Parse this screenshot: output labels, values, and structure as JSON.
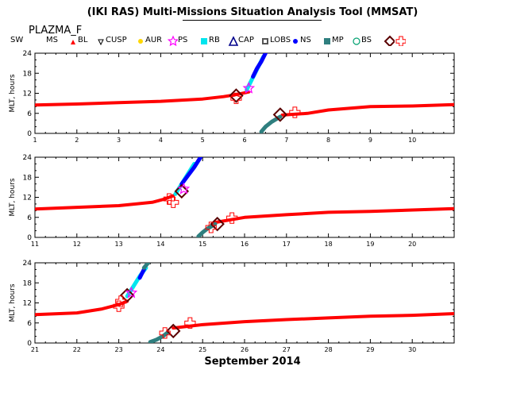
{
  "title": "(IKI RAS) Multi-Missions Situation Analysis Tool (MMSAT)",
  "satellite": "PLAZMA_F",
  "legend": [
    {
      "label": "SW",
      "symbol": "none",
      "color": "#000000"
    },
    {
      "label": "MS",
      "symbol": "small-triangle",
      "color": "#ff0000"
    },
    {
      "label": "BL",
      "symbol": "small-triangle-down",
      "color": "#000000"
    },
    {
      "label": "CUSP",
      "symbol": "dot",
      "color": "#ffd700"
    },
    {
      "label": "AUR",
      "symbol": "star",
      "color": "#ff00ff"
    },
    {
      "label": "PS",
      "symbol": "square-filled",
      "color": "#00e5ee"
    },
    {
      "label": "RB",
      "symbol": "triangle",
      "color": "#00008b"
    },
    {
      "label": "CAP",
      "symbol": "square-small",
      "color": "#555555"
    },
    {
      "label": "LOBS",
      "symbol": "dot",
      "color": "#0000ff"
    },
    {
      "label": "NS",
      "symbol": "square-filled",
      "color": "#2f7f7f"
    },
    {
      "label": "MP",
      "symbol": "circle",
      "color": "#00a070"
    },
    {
      "label": "BS",
      "symbol": "diamond",
      "color": "#5a0000"
    },
    {
      "label": "",
      "symbol": "cross",
      "color": "#ff0000"
    }
  ],
  "xlabel": "September 2014",
  "ylabel": "MLT, hours",
  "chart_data": [
    {
      "type": "scatter",
      "panel": 1,
      "xlim": [
        1,
        11
      ],
      "ylim": [
        0,
        24
      ],
      "xticks": [
        1,
        2,
        3,
        4,
        5,
        6,
        7,
        8,
        9,
        10
      ],
      "yticks": [
        0,
        6,
        12,
        18,
        24
      ],
      "series": [
        {
          "region": "SW",
          "color": "#ff0000",
          "x": [
            1,
            2,
            3,
            4,
            5,
            5.5,
            5.8,
            6.1
          ],
          "y": [
            8.5,
            8.8,
            9.2,
            9.6,
            10.3,
            11.0,
            11.6,
            12.4
          ]
        },
        {
          "region": "SW",
          "color": "#ff0000",
          "x": [
            6.9,
            7.5,
            8,
            9,
            10,
            11
          ],
          "y": [
            5.5,
            6.0,
            7.0,
            8.0,
            8.2,
            8.6
          ]
        },
        {
          "region": "PS",
          "color": "#00e5ee",
          "x": [
            6.05,
            6.15,
            6.25,
            6.35,
            6.45
          ],
          "y": [
            13,
            15.5,
            18,
            20.5,
            23
          ]
        },
        {
          "region": "LOBS",
          "color": "#0000ff",
          "x": [
            6.2,
            6.3,
            6.4,
            6.5
          ],
          "y": [
            17,
            19.5,
            21.5,
            24
          ]
        },
        {
          "region": "NS",
          "color": "#2f7f7f",
          "x": [
            6.4,
            6.5,
            6.65,
            6.85
          ],
          "y": [
            0.5,
            2,
            3.5,
            5
          ]
        }
      ],
      "crossings": [
        {
          "type": "BS",
          "x": [
            5.8,
            6.85
          ],
          "y": [
            11.3,
            5.6
          ]
        },
        {
          "type": "BS-cross",
          "x": [
            5.8,
            7.2
          ],
          "y": [
            10.5,
            6.3
          ]
        },
        {
          "type": "AUR",
          "x": [
            6.1
          ],
          "y": [
            13.5
          ]
        }
      ]
    },
    {
      "type": "scatter",
      "panel": 2,
      "xlim": [
        11,
        21
      ],
      "ylim": [
        0,
        24
      ],
      "xticks": [
        11,
        12,
        13,
        14,
        15,
        16,
        17,
        18,
        19,
        20
      ],
      "yticks": [
        0,
        6,
        12,
        18,
        24
      ],
      "series": [
        {
          "region": "SW",
          "color": "#ff0000",
          "x": [
            11,
            12,
            13,
            13.8,
            14.1,
            14.3
          ],
          "y": [
            8.5,
            9.0,
            9.5,
            10.5,
            11.5,
            12.5
          ]
        },
        {
          "region": "SW",
          "color": "#ff0000",
          "x": [
            15.3,
            16,
            17,
            18,
            19,
            20,
            21
          ],
          "y": [
            4.5,
            6.0,
            6.8,
            7.5,
            7.8,
            8.2,
            8.6
          ]
        },
        {
          "region": "PS",
          "color": "#00e5ee",
          "x": [
            14.35,
            14.5,
            14.65,
            14.8
          ],
          "y": [
            13,
            16,
            19,
            22
          ]
        },
        {
          "region": "LOBS",
          "color": "#0000ff",
          "x": [
            14.5,
            14.65,
            14.8,
            14.95
          ],
          "y": [
            16,
            18.5,
            21,
            24
          ]
        },
        {
          "region": "NS",
          "color": "#2f7f7f",
          "x": [
            14.9,
            15.0,
            15.1,
            15.3
          ],
          "y": [
            0.3,
            1.5,
            2.5,
            4.0
          ]
        }
      ],
      "crossings": [
        {
          "type": "BS",
          "x": [
            14.5,
            15.35
          ],
          "y": [
            13.8,
            4.0
          ]
        },
        {
          "type": "BS-cross",
          "x": [
            14.2,
            14.3,
            15.2,
            15.7
          ],
          "y": [
            11.5,
            10.5,
            3.0,
            5.8
          ]
        },
        {
          "type": "AUR",
          "x": [
            14.55
          ],
          "y": [
            14.5
          ]
        }
      ]
    },
    {
      "type": "scatter",
      "panel": 3,
      "xlim": [
        21,
        31
      ],
      "ylim": [
        0,
        24
      ],
      "xticks": [
        21,
        22,
        23,
        24,
        25,
        26,
        27,
        28,
        29,
        30
      ],
      "yticks": [
        0,
        6,
        12,
        18,
        24
      ],
      "series": [
        {
          "region": "SW",
          "color": "#ff0000",
          "x": [
            21,
            22,
            22.6,
            23.0,
            23.2
          ],
          "y": [
            8.5,
            9.0,
            10.2,
            11.5,
            12.5
          ]
        },
        {
          "region": "SW",
          "color": "#ff0000",
          "x": [
            24.3,
            25,
            26,
            27,
            28,
            29,
            30,
            31
          ],
          "y": [
            4.5,
            5.5,
            6.4,
            7.0,
            7.5,
            8.0,
            8.3,
            8.8
          ]
        },
        {
          "region": "PS",
          "color": "#00e5ee",
          "x": [
            23.2,
            23.35,
            23.5,
            23.65
          ],
          "y": [
            14,
            17,
            20,
            22.5
          ]
        },
        {
          "region": "LOBS",
          "color": "#0000ff",
          "x": [
            23.5,
            23.6
          ],
          "y": [
            19.5,
            22
          ]
        },
        {
          "region": "NS",
          "color": "#2f7f7f",
          "x": [
            23.75,
            23.9,
            24.05,
            24.15
          ],
          "y": [
            0.3,
            1.0,
            2.0,
            3.0
          ]
        },
        {
          "region": "NS",
          "color": "#2f7f7f",
          "x": [
            23.6,
            23.7
          ],
          "y": [
            22.5,
            24
          ]
        }
      ],
      "crossings": [
        {
          "type": "BS",
          "x": [
            23.2,
            24.3
          ],
          "y": [
            14.3,
            3.6
          ]
        },
        {
          "type": "BS-cross",
          "x": [
            23.0,
            23.05,
            24.1,
            24.7
          ],
          "y": [
            11.0,
            12.5,
            3.0,
            6.0
          ]
        },
        {
          "type": "AUR",
          "x": [
            23.3
          ],
          "y": [
            15.0
          ]
        }
      ]
    }
  ]
}
